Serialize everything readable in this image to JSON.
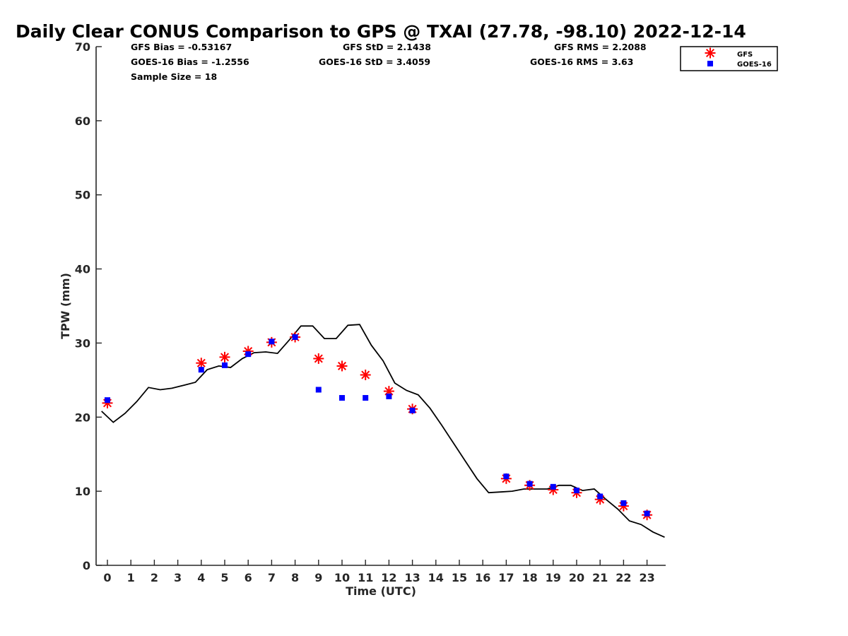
{
  "chart_data": {
    "type": "line",
    "title": "Daily Clear CONUS Comparison to GPS @ TXAI (27.78, -98.10) 2022-12-14",
    "xlabel": "Time (UTC)",
    "ylabel": "TPW (mm)",
    "xlim": [
      -0.5,
      23.75
    ],
    "ylim": [
      0,
      70
    ],
    "x_ticks": [
      0,
      1,
      2,
      3,
      4,
      5,
      6,
      7,
      8,
      9,
      10,
      11,
      12,
      13,
      14,
      15,
      16,
      17,
      18,
      19,
      20,
      21,
      22,
      23
    ],
    "y_ticks": [
      0,
      10,
      20,
      30,
      40,
      50,
      60,
      70
    ],
    "grid": false,
    "legend_position": "top-right",
    "stats": {
      "gfs_bias": "GFS Bias = -0.53167",
      "gfs_std": "GFS StD = 2.1438",
      "gfs_rms": "GFS RMS = 2.2088",
      "goes_bias": "GOES-16 Bias = -1.2556",
      "goes_std": "GOES-16 StD = 3.4059",
      "goes_rms": "GOES-16 RMS = 3.63",
      "sample_size": "Sample Size = 18"
    },
    "series": [
      {
        "style": "line",
        "color": "#000000",
        "x": [
          -0.25,
          0.25,
          0.75,
          1.25,
          1.75,
          2.25,
          2.75,
          3.25,
          3.75,
          4.25,
          4.75,
          5.25,
          5.75,
          6.25,
          6.75,
          7.25,
          7.75,
          8.25,
          8.75,
          9.25,
          9.75,
          10.25,
          10.75,
          11.25,
          11.75,
          12.25,
          12.75,
          13.25,
          13.75,
          14.25,
          14.75,
          15.25,
          15.75,
          16.25,
          16.75,
          17.25,
          17.75,
          18.25,
          18.75,
          19.25,
          19.75,
          20.25,
          20.75,
          21.25,
          21.75,
          22.25,
          22.75,
          23.25,
          23.75
        ],
        "y": [
          20.8,
          19.3,
          20.5,
          22.1,
          24.0,
          23.7,
          23.9,
          24.3,
          24.7,
          26.4,
          26.9,
          26.7,
          27.9,
          28.7,
          28.8,
          28.6,
          30.4,
          32.3,
          32.3,
          30.6,
          30.6,
          32.4,
          32.5,
          29.7,
          27.6,
          24.6,
          23.6,
          23.0,
          21.2,
          18.9,
          16.5,
          14.1,
          11.7,
          9.8,
          9.9,
          10.0,
          10.3,
          10.3,
          10.3,
          10.8,
          10.8,
          10.1,
          10.3,
          8.9,
          7.6,
          6.0,
          5.5,
          4.5,
          3.8
        ]
      },
      {
        "name": "GFS",
        "style": "marker-asterisk",
        "color": "#ff0000",
        "x": [
          0,
          4,
          5,
          6,
          7,
          8,
          9,
          10,
          11,
          12,
          13,
          17,
          18,
          19,
          20,
          21,
          22,
          23
        ],
        "y": [
          21.9,
          27.3,
          28.1,
          28.9,
          30.1,
          30.8,
          27.9,
          26.9,
          25.7,
          23.5,
          21.1,
          11.7,
          10.8,
          10.2,
          9.8,
          8.9,
          8.0,
          6.8
        ]
      },
      {
        "name": "GOES-16",
        "style": "marker-square",
        "color": "#0000ff",
        "x": [
          0,
          4,
          5,
          6,
          7,
          8,
          9,
          10,
          11,
          12,
          13,
          17,
          18,
          19,
          20,
          21,
          22,
          23
        ],
        "y": [
          22.3,
          26.4,
          27.0,
          28.5,
          30.2,
          30.8,
          23.7,
          22.6,
          22.6,
          22.8,
          20.9,
          12.0,
          11.0,
          10.6,
          10.1,
          9.3,
          8.4,
          7.0
        ]
      }
    ]
  }
}
